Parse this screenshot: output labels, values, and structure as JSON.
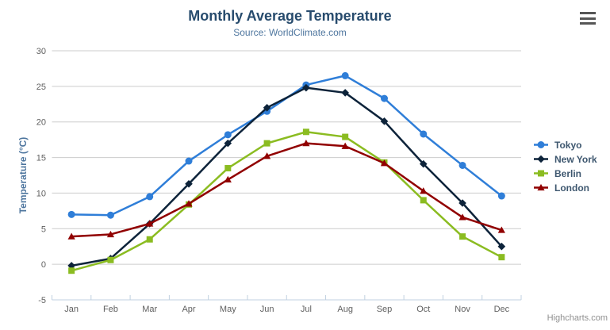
{
  "watermark": "Highcharts.com",
  "export_menu": {
    "tooltip": "Chart context menu"
  },
  "colors": {
    "title": "#274b6d",
    "subtitle": "#4d759e",
    "axis_title": "#4d759e",
    "axis_label": "#606060",
    "legend_text": "#3e576f",
    "grid_line": "#cccccc",
    "axis_line": "#c0d0e0",
    "watermark": "#8f8f8f",
    "menu_icon": "#565656",
    "background": "#ffffff"
  },
  "chart_data": {
    "type": "line",
    "title": "Monthly Average Temperature",
    "subtitle": "Source: WorldClimate.com",
    "categories": [
      "Jan",
      "Feb",
      "Mar",
      "Apr",
      "May",
      "Jun",
      "Jul",
      "Aug",
      "Sep",
      "Oct",
      "Nov",
      "Dec"
    ],
    "series": [
      {
        "name": "Tokyo",
        "color": "#2f7ed8",
        "marker": "circle",
        "values": [
          7.0,
          6.9,
          9.5,
          14.5,
          18.2,
          21.5,
          25.2,
          26.5,
          23.3,
          18.3,
          13.9,
          9.6
        ]
      },
      {
        "name": "New York",
        "color": "#0d233a",
        "marker": "diamond",
        "values": [
          -0.2,
          0.8,
          5.7,
          11.3,
          17.0,
          22.0,
          24.8,
          24.1,
          20.1,
          14.1,
          8.6,
          2.5
        ]
      },
      {
        "name": "Berlin",
        "color": "#8bbc21",
        "marker": "square",
        "values": [
          -0.9,
          0.6,
          3.5,
          8.4,
          13.5,
          17.0,
          18.6,
          17.9,
          14.3,
          9.0,
          3.9,
          1.0
        ]
      },
      {
        "name": "London",
        "color": "#910000",
        "marker": "triangle",
        "values": [
          3.9,
          4.2,
          5.7,
          8.5,
          11.9,
          15.2,
          17.0,
          16.6,
          14.2,
          10.3,
          6.6,
          4.8
        ]
      }
    ],
    "xlabel": "",
    "ylabel": "Temperature (°C)",
    "ylim": [
      -5,
      30
    ],
    "ytick_step": 5,
    "grid": true,
    "legend_position": "right"
  }
}
